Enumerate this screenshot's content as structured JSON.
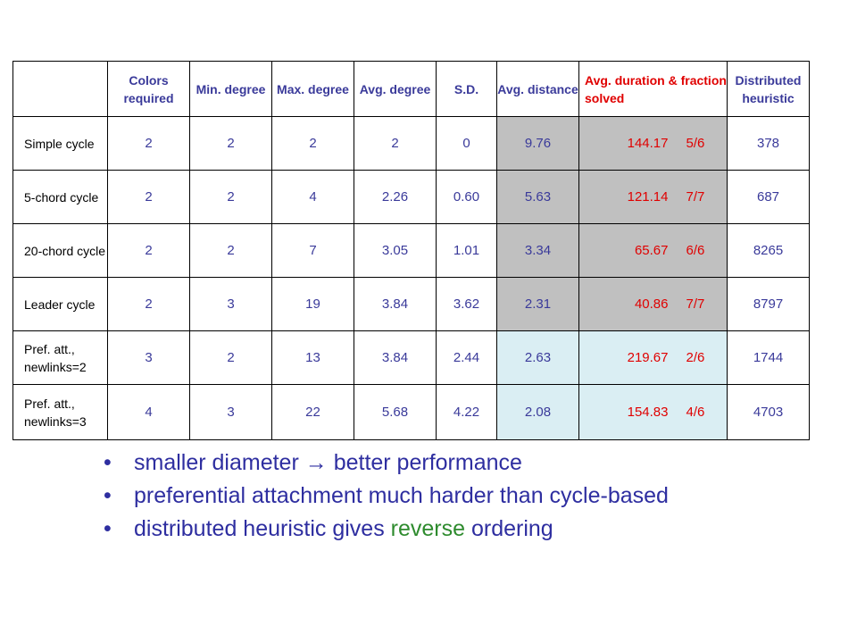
{
  "table": {
    "headers": {
      "colors": "Colors required",
      "min": "Min. degree",
      "max": "Max. degree",
      "avg": "Avg. degree",
      "sd": "S.D.",
      "dist": "Avg. distance",
      "duration": "Avg. duration & fraction solved",
      "heuristic": "Distributed heuristic"
    },
    "rows": [
      {
        "label": "Simple cycle",
        "colors": "2",
        "min": "2",
        "max": "2",
        "avg": "2",
        "sd": "0",
        "dist": "9.76",
        "duration": "144.17",
        "fraction": "5/6",
        "heuristic": "378"
      },
      {
        "label": "5-chord cycle",
        "colors": "2",
        "min": "2",
        "max": "4",
        "avg": "2.26",
        "sd": "0.60",
        "dist": "5.63",
        "duration": "121.14",
        "fraction": "7/7",
        "heuristic": "687"
      },
      {
        "label": "20-chord cycle",
        "colors": "2",
        "min": "2",
        "max": "7",
        "avg": "3.05",
        "sd": "1.01",
        "dist": "3.34",
        "duration": "65.67",
        "fraction": "6/6",
        "heuristic": "8265"
      },
      {
        "label": "Leader cycle",
        "colors": "2",
        "min": "3",
        "max": "19",
        "avg": "3.84",
        "sd": "3.62",
        "dist": "2.31",
        "duration": "40.86",
        "fraction": "7/7",
        "heuristic": "8797"
      },
      {
        "label": "Pref. att., newlinks=2",
        "colors": "3",
        "min": "2",
        "max": "13",
        "avg": "3.84",
        "sd": "2.44",
        "dist": "2.63",
        "duration": "219.67",
        "fraction": "2/6",
        "heuristic": "1744"
      },
      {
        "label": "Pref. att., newlinks=3",
        "colors": "4",
        "min": "3",
        "max": "22",
        "avg": "5.68",
        "sd": "4.22",
        "dist": "2.08",
        "duration": "154.83",
        "fraction": "4/6",
        "heuristic": "4703"
      }
    ]
  },
  "bullets": {
    "b1_a": "smaller diameter",
    "b1_arrow": "→",
    "b1_b": "better performance",
    "b2": "preferential attachment much harder than cycle-based",
    "b3_a": "distributed heuristic gives ",
    "b3_green": "reverse",
    "b3_b": " ordering",
    "marker": "•"
  },
  "colors": {
    "text_blue": "#3a3a9a",
    "red": "#e00000",
    "grey_fill": "#c0c0c0",
    "cyan_fill": "#daeef3",
    "green": "#2e8b2e"
  }
}
